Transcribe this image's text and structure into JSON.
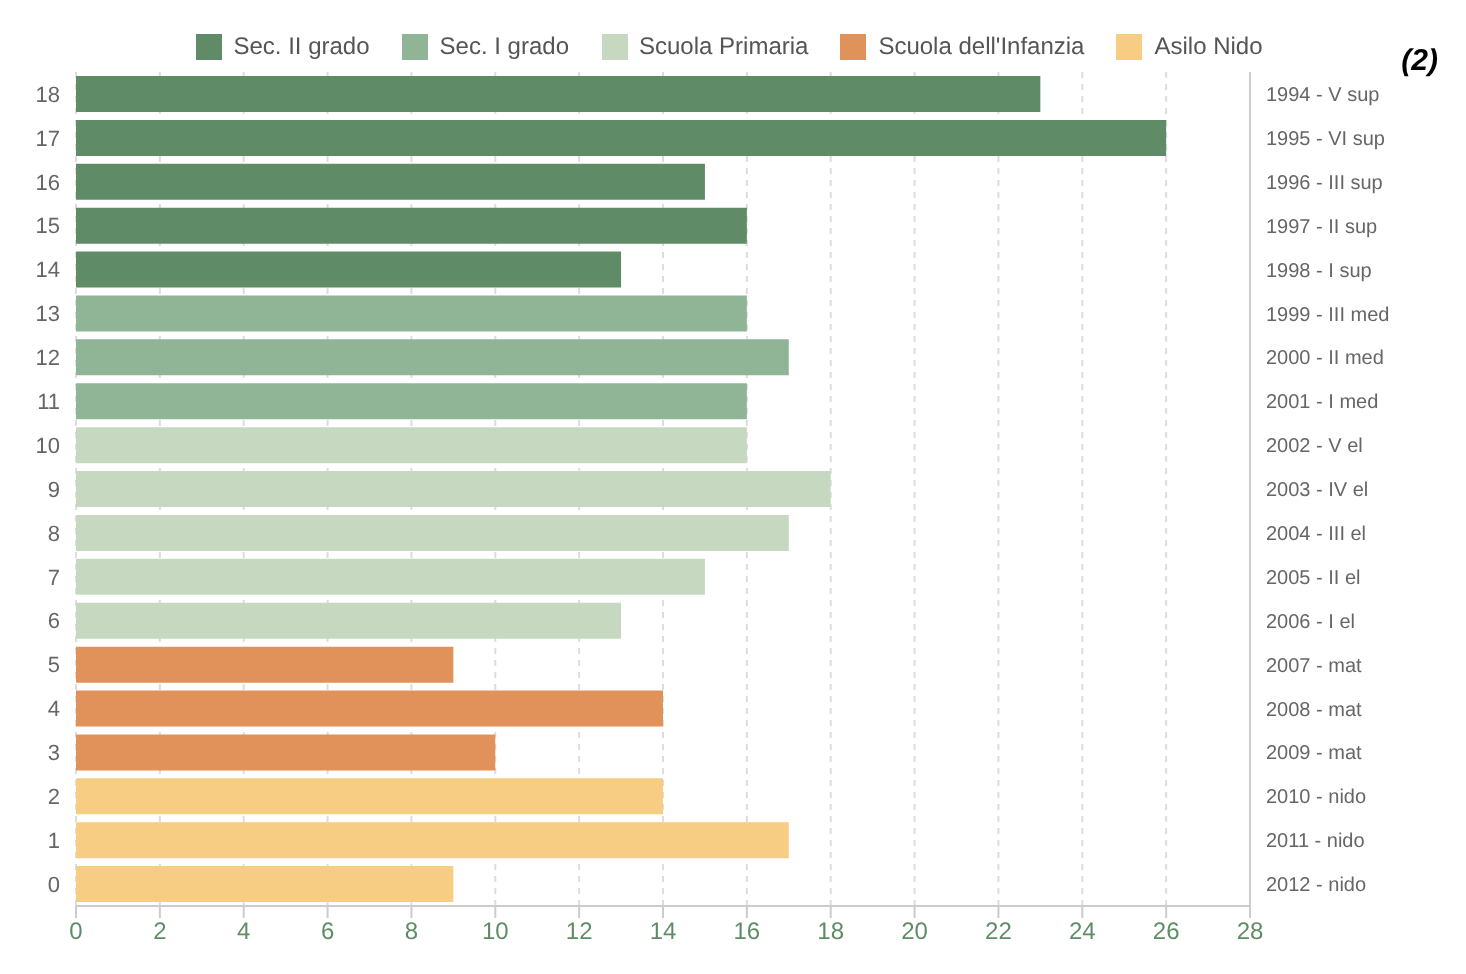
{
  "chart_data": {
    "type": "bar",
    "orientation": "horizontal",
    "stacked": true,
    "categories": [
      "18",
      "17",
      "16",
      "15",
      "14",
      "13",
      "12",
      "11",
      "10",
      "9",
      "8",
      "7",
      "6",
      "5",
      "4",
      "3",
      "2",
      "1",
      "0"
    ],
    "y2_categories": [
      "1994 - V sup",
      "1995 - VI sup",
      "1996 - III sup",
      "1997 - II sup",
      "1998 - I sup",
      "1999 - III med",
      "2000 - II med",
      "2001 - I med",
      "2002 - V el",
      "2003 - IV el",
      "2004 - III el",
      "2005 - II el",
      "2006 - I el",
      "2007 - mat",
      "2008 - mat",
      "2009 - mat",
      "2010 - nido",
      "2011 - nido",
      "2012 - nido"
    ],
    "series": [
      {
        "name": "Sec. II grado",
        "color": "#5f8c66",
        "values": [
          23,
          26,
          15,
          16,
          13,
          null,
          null,
          null,
          null,
          null,
          null,
          null,
          null,
          null,
          null,
          null,
          null,
          null,
          null
        ]
      },
      {
        "name": "Sec. I grado",
        "color": "#8fb596",
        "values": [
          null,
          null,
          null,
          null,
          null,
          16,
          17,
          16,
          null,
          null,
          null,
          null,
          null,
          null,
          null,
          null,
          null,
          null,
          null
        ]
      },
      {
        "name": "Scuola Primaria",
        "color": "#c6d9c0",
        "values": [
          null,
          null,
          null,
          null,
          null,
          null,
          null,
          null,
          16,
          18,
          17,
          15,
          13,
          null,
          null,
          null,
          null,
          null,
          null
        ]
      },
      {
        "name": "Scuola dell'Infanzia",
        "color": "#e0925a",
        "values": [
          null,
          null,
          null,
          null,
          null,
          null,
          null,
          null,
          null,
          null,
          null,
          null,
          null,
          9,
          14,
          10,
          null,
          null,
          null
        ]
      },
      {
        "name": "Asilo Nido",
        "color": "#f6cd83",
        "values": [
          null,
          null,
          null,
          null,
          null,
          null,
          null,
          null,
          null,
          null,
          null,
          null,
          null,
          null,
          null,
          null,
          14,
          17,
          9
        ]
      }
    ],
    "xlim": [
      0,
      28
    ],
    "xticks": [
      0,
      2,
      4,
      6,
      8,
      10,
      12,
      14,
      16,
      18,
      20,
      22,
      24,
      26,
      28
    ],
    "grid": "x",
    "legend": "top",
    "annotations": [
      "(2)"
    ]
  }
}
